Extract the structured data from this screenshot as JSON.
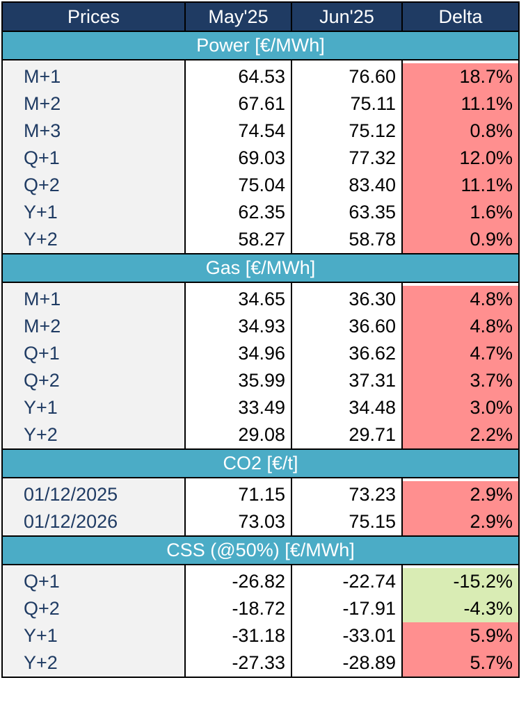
{
  "header": {
    "label": "Prices",
    "col1": "May'25",
    "col2": "Jun'25",
    "col3": "Delta"
  },
  "colors": {
    "header_bg": "#1f3b63",
    "section_bg": "#4bacc6",
    "increase_bg": "#ff8f8f",
    "decrease_bg": "#d9ecb4"
  },
  "sections": [
    {
      "title": "Power [€/MWh]",
      "rows": [
        {
          "label": "M+1",
          "may": "64.53",
          "jun": "76.60",
          "delta": "18.7%"
        },
        {
          "label": "M+2",
          "may": "67.61",
          "jun": "75.11",
          "delta": "11.1%"
        },
        {
          "label": "M+3",
          "may": "74.54",
          "jun": "75.12",
          "delta": "0.8%"
        },
        {
          "label": "Q+1",
          "may": "69.03",
          "jun": "77.32",
          "delta": "12.0%"
        },
        {
          "label": "Q+2",
          "may": "75.04",
          "jun": "83.40",
          "delta": "11.1%"
        },
        {
          "label": "Y+1",
          "may": "62.35",
          "jun": "63.35",
          "delta": "1.6%"
        },
        {
          "label": "Y+2",
          "may": "58.27",
          "jun": "58.78",
          "delta": "0.9%"
        }
      ]
    },
    {
      "title": "Gas [€/MWh]",
      "rows": [
        {
          "label": "M+1",
          "may": "34.65",
          "jun": "36.30",
          "delta": "4.8%"
        },
        {
          "label": "M+2",
          "may": "34.93",
          "jun": "36.60",
          "delta": "4.8%"
        },
        {
          "label": "Q+1",
          "may": "34.96",
          "jun": "36.62",
          "delta": "4.7%"
        },
        {
          "label": "Q+2",
          "may": "35.99",
          "jun": "37.31",
          "delta": "3.7%"
        },
        {
          "label": "Y+1",
          "may": "33.49",
          "jun": "34.48",
          "delta": "3.0%"
        },
        {
          "label": "Y+2",
          "may": "29.08",
          "jun": "29.71",
          "delta": "2.2%"
        }
      ]
    },
    {
      "title": "CO2 [€/t]",
      "rows": [
        {
          "label": "01/12/2025",
          "may": "71.15",
          "jun": "73.23",
          "delta": "2.9%"
        },
        {
          "label": "01/12/2026",
          "may": "73.03",
          "jun": "75.15",
          "delta": "2.9%"
        }
      ]
    },
    {
      "title": "CSS (@50%) [€/MWh]",
      "rows": [
        {
          "label": "Q+1",
          "may": "-26.82",
          "jun": "-22.74",
          "delta": "-15.2%"
        },
        {
          "label": "Q+2",
          "may": "-18.72",
          "jun": "-17.91",
          "delta": "-4.3%"
        },
        {
          "label": "Y+1",
          "may": "-31.18",
          "jun": "-33.01",
          "delta": "5.9%"
        },
        {
          "label": "Y+2",
          "may": "-27.33",
          "jun": "-28.89",
          "delta": "5.7%"
        }
      ]
    }
  ]
}
